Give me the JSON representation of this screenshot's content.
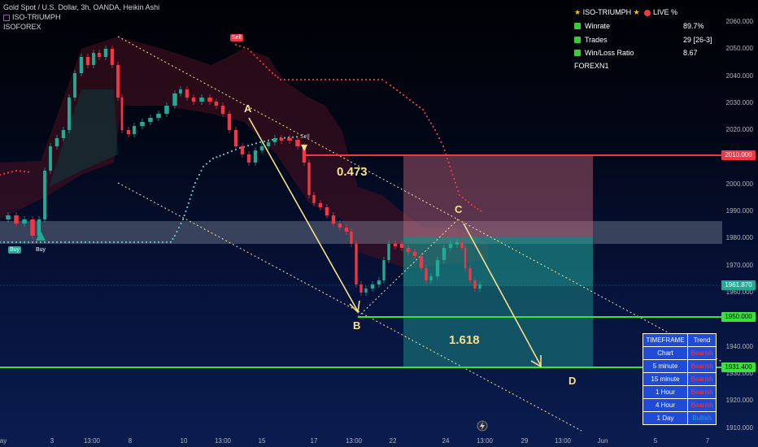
{
  "header": {
    "symbol_line": "Gold Spot / U.S. Dollar, 3h, OANDA, Heikin Ashi",
    "indicator_name": "ISO-TRIUMPH",
    "indicator_sub": "ISOFOREX"
  },
  "stats": {
    "title": "ISO-TRIUMPH",
    "live_label": "LIVE %",
    "rows": [
      {
        "label": "Winrate",
        "value": "89.7%"
      },
      {
        "label": "Trades",
        "value": "29 [26-3]"
      },
      {
        "label": "Win/Loss Ratio",
        "value": "8.67"
      }
    ],
    "footer": "FOREXN1"
  },
  "price_axis": {
    "ticks": [
      "2060.000",
      "2050.000",
      "2040.000",
      "2030.000",
      "2020.000",
      "2010.000",
      "2000.000",
      "1990.000",
      "1980.000",
      "1970.000",
      "1960.000",
      "1950.000",
      "1940.000",
      "1930.000",
      "1920.000",
      "1910.000"
    ],
    "labels": {
      "stop": "2010.000",
      "current": "1961.870",
      "target1": "1950.000",
      "target2": "1931.400"
    }
  },
  "time_axis": [
    "ay",
    "3",
    "13:00",
    "8",
    "10",
    "13:00",
    "15",
    "17",
    "13:00",
    "22",
    "24",
    "13:00",
    "29",
    "13:00",
    "Jun",
    "5",
    "7"
  ],
  "annotations": {
    "waves": [
      "A",
      "B",
      "C",
      "D"
    ],
    "fib_top": "0.473",
    "fib_bottom": "1.618",
    "signals": {
      "buy1": "Buy",
      "buy2": "Buy",
      "sell1": "Sell",
      "sell2": "Sell"
    }
  },
  "trend_table": {
    "headers": [
      "TIMEFRAME",
      "Trend"
    ],
    "rows": [
      {
        "tf": "Chart",
        "trend": "Bearish"
      },
      {
        "tf": "5 minute",
        "trend": "Bearish"
      },
      {
        "tf": "15 minute",
        "trend": "Bearish"
      },
      {
        "tf": "1 Hour",
        "trend": "Bearish"
      },
      {
        "tf": "4 Hour",
        "trend": "Bearish"
      },
      {
        "tf": "1 Day",
        "trend": "Bullish"
      }
    ]
  },
  "colors": {
    "bull": "#22ab94",
    "bear": "#f23645",
    "target_line": "#3be23b",
    "stop_line": "#f23645",
    "annotation": "#f7e08a"
  }
}
